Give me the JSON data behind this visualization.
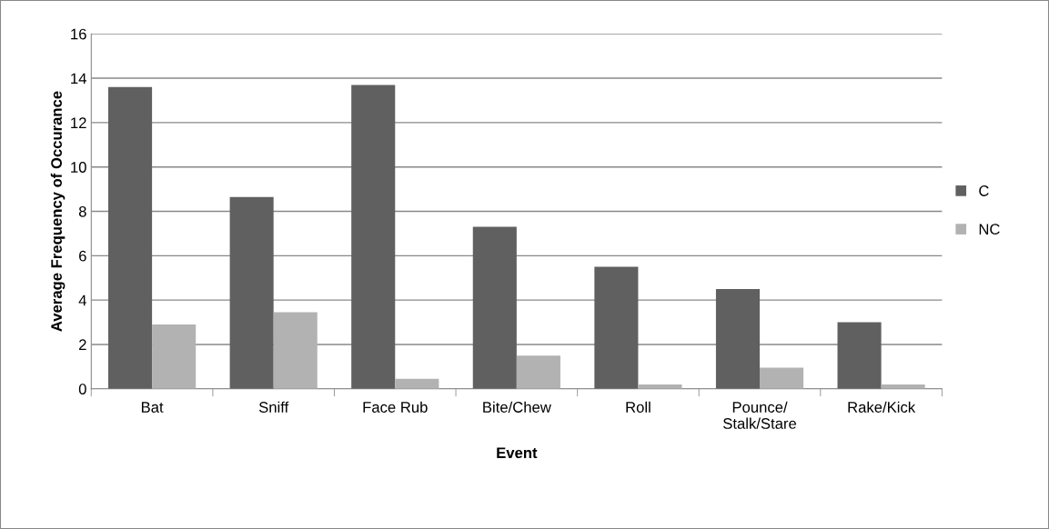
{
  "chart_data": {
    "type": "bar",
    "xlabel": "Event",
    "ylabel": "Average Frequency of Occurance",
    "categories": [
      "Bat",
      "Sniff",
      "Face Rub",
      "Bite/Chew",
      "Roll",
      "Pounce/\nStalk/Stare",
      "Rake/Kick"
    ],
    "series": [
      {
        "name": "C",
        "color": "#606060",
        "values": [
          13.6,
          8.65,
          13.7,
          7.3,
          5.5,
          4.5,
          3.0
        ]
      },
      {
        "name": "NC",
        "color": "#b2b2b2",
        "values": [
          2.9,
          3.45,
          0.45,
          1.5,
          0.2,
          0.95,
          0.2
        ]
      }
    ],
    "ylim": [
      0,
      16
    ],
    "yticks": [
      0,
      2,
      4,
      6,
      8,
      10,
      12,
      14,
      16
    ],
    "grid": "y",
    "legend": "right"
  }
}
